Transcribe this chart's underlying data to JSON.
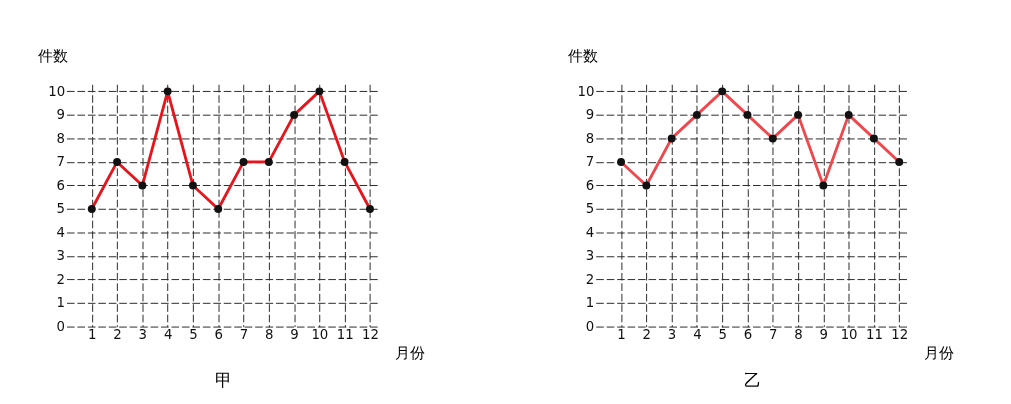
{
  "chart_data": [
    {
      "type": "line",
      "title": "甲",
      "xlabel": "月份",
      "ylabel": "件数",
      "x": [
        1,
        2,
        3,
        4,
        5,
        6,
        7,
        8,
        9,
        10,
        11,
        12
      ],
      "series": [
        {
          "color": "#e8141b",
          "values": [
            5,
            7,
            6,
            10,
            6,
            5,
            7,
            7,
            9,
            10,
            7,
            5
          ]
        }
      ],
      "xlim": [
        0,
        12.4
      ],
      "xticks": [
        1,
        2,
        3,
        4,
        5,
        6,
        7,
        8,
        9,
        10,
        11,
        12
      ],
      "ylim": [
        0,
        10.3
      ],
      "yticks": [
        0,
        1,
        2,
        3,
        4,
        5,
        6,
        7,
        8,
        9,
        10
      ],
      "grid": true,
      "marker": "circle",
      "line_style": "solid"
    },
    {
      "type": "line",
      "title": "乙",
      "xlabel": "月份",
      "ylabel": "件数",
      "x": [
        1,
        2,
        3,
        4,
        5,
        6,
        7,
        8,
        9,
        10,
        11,
        12
      ],
      "series": [
        {
          "color": "#f0474d",
          "values": [
            7,
            6,
            8,
            9,
            10,
            9,
            8,
            9,
            6,
            9,
            8,
            7
          ]
        }
      ],
      "xlim": [
        0,
        12.4
      ],
      "xticks": [
        1,
        2,
        3,
        4,
        5,
        6,
        7,
        8,
        9,
        10,
        11,
        12
      ],
      "ylim": [
        0,
        10.3
      ],
      "yticks": [
        0,
        1,
        2,
        3,
        4,
        5,
        6,
        7,
        8,
        9,
        10
      ],
      "grid": true,
      "marker": "circle",
      "line_style": "solid"
    }
  ]
}
